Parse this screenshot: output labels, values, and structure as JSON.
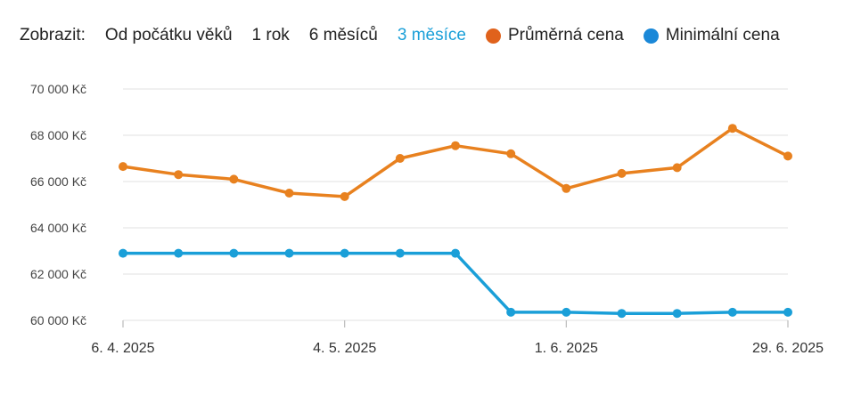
{
  "controls": {
    "show_label": "Zobrazit:",
    "ranges": [
      {
        "label": "Od počátku věků",
        "active": false
      },
      {
        "label": "1 rok",
        "active": false
      },
      {
        "label": "6 měsíců",
        "active": false
      },
      {
        "label": "3 měsíce",
        "active": true
      }
    ]
  },
  "colors": {
    "active_range": "#1a9fd8",
    "average": "#e8811f",
    "minimum": "#1a9fd8",
    "legend_average_dot": "#e0621c",
    "legend_minimum_dot": "#1a88d8",
    "grid": "#e6e6e6"
  },
  "chart_data": {
    "type": "line",
    "x": [
      "2025-04-06",
      "2025-04-13",
      "2025-04-20",
      "2025-04-27",
      "2025-05-04",
      "2025-05-11",
      "2025-05-18",
      "2025-05-25",
      "2025-06-01",
      "2025-06-08",
      "2025-06-15",
      "2025-06-22",
      "2025-06-29"
    ],
    "x_tick_labels": [
      "6. 4. 2025",
      "4. 5. 2025",
      "1. 6. 2025",
      "29. 6. 2025"
    ],
    "y_tick_labels": [
      "60 000 Kč",
      "62 000 Kč",
      "64 000 Kč",
      "66 000 Kč",
      "68 000 Kč",
      "70 000 Kč"
    ],
    "ylim": [
      60000,
      70000
    ],
    "grid": true,
    "legend_position": "top-right",
    "series": [
      {
        "name": "Průměrná cena",
        "color": "#e8811f",
        "values": [
          66650,
          66300,
          66100,
          65500,
          65350,
          67000,
          67550,
          67200,
          65700,
          66350,
          66600,
          68300,
          67100
        ]
      },
      {
        "name": "Minimální cena",
        "color": "#1a9fd8",
        "values": [
          62900,
          62900,
          62900,
          62900,
          62900,
          62900,
          62900,
          60350,
          60350,
          60300,
          60300,
          60350,
          60350
        ]
      }
    ]
  }
}
